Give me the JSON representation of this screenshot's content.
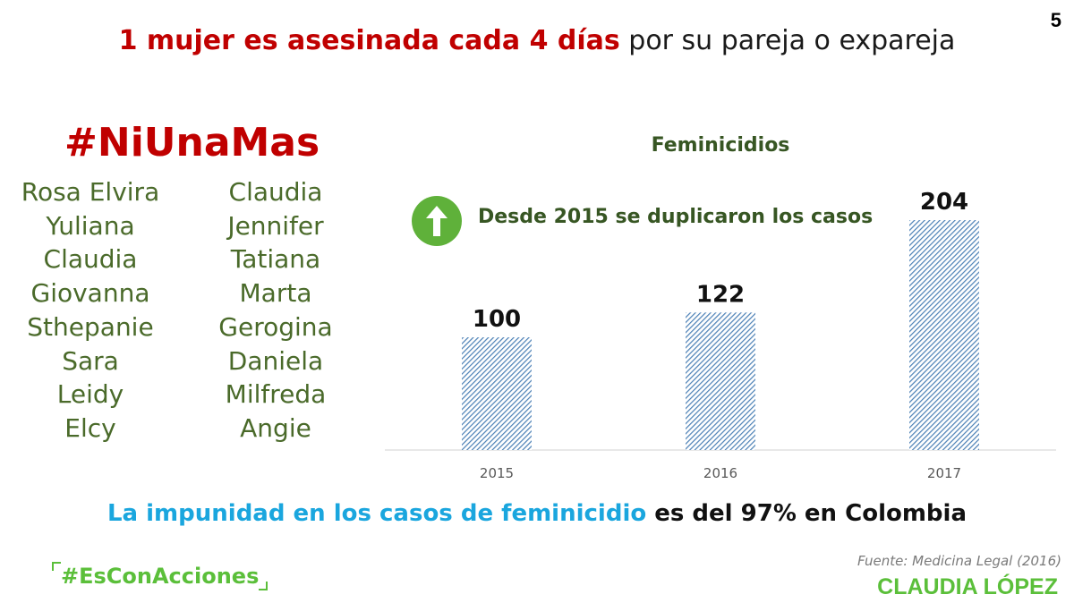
{
  "slide": {
    "page_number": "5",
    "headline_emphasis": "1  mujer es asesinada cada 4 días",
    "headline_rest": " por su pareja o expareja",
    "hashtag": "#NiUnaMas",
    "names_left": [
      "Rosa Elvira",
      "Yuliana",
      "Claudia",
      "Giovanna",
      "Sthepanie",
      "Sara",
      "Leidy",
      "Elcy"
    ],
    "names_right": [
      "Claudia",
      "Jennifer",
      "Tatiana",
      "Marta",
      "Gerogina",
      "Daniela",
      "Milfreda",
      "Angie"
    ],
    "note_icon": "arrow-up-icon",
    "footer_emphasis": "La impunidad en los casos de feminicidio",
    "footer_rest": " es del 97% en Colombia",
    "source": "Fuente: Medicina Legal (2016)",
    "campaign_tag": "#EsConAcciones",
    "brand": "CLAUDIA LÓPEZ"
  },
  "colors": {
    "headline_red": "#c00000",
    "names_green": "#4a6a2a",
    "chart_green": "#375623",
    "badge_green": "#5fb13a",
    "bar_blue": "#4a7fb5",
    "footer_cyan": "#1aa6de",
    "brand_green": "#5bbf3a"
  },
  "chart_data": {
    "type": "bar",
    "title": "Feminicidios",
    "annotation": "Desde 2015 se duplicaron los casos",
    "categories": [
      "2015",
      "2016",
      "2017"
    ],
    "values": [
      100,
      122,
      204
    ],
    "data_labels": [
      "100",
      "122",
      "204"
    ],
    "ylim": [
      0,
      204
    ],
    "grid": false,
    "bar_fill": "diagonal-hatch"
  }
}
